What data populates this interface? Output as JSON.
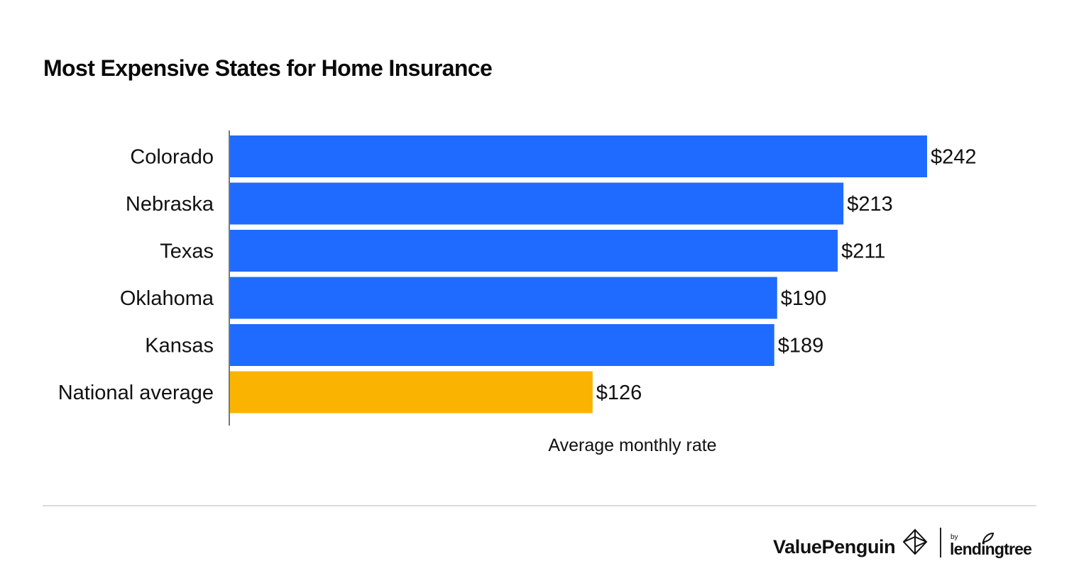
{
  "header": {
    "title": "Most Expensive States for Home Insurance"
  },
  "chart_data": {
    "type": "bar",
    "orientation": "horizontal",
    "title": "Most Expensive States for Home Insurance",
    "categories": [
      "Colorado",
      "Nebraska",
      "Texas",
      "Oklahoma",
      "Kansas",
      "National average"
    ],
    "values": [
      242,
      213,
      211,
      190,
      189,
      126
    ],
    "labels": [
      "$242",
      "$213",
      "$211",
      "$190",
      "$189",
      "$126"
    ],
    "highlight": [
      false,
      false,
      false,
      false,
      false,
      true
    ],
    "xlabel": "Average monthly rate",
    "ylabel": "",
    "xlim": [
      0,
      242
    ],
    "grid": false,
    "colors": {
      "primary": "#1f6bff",
      "highlight": "#fab400",
      "axis": "#777777"
    }
  },
  "footer": {
    "brand": "ValuePenguin",
    "brand_icon": "valuepenguin-logo-icon",
    "partner_prefix": "by",
    "partner": "lendingtree",
    "partner_icon": "lendingtree-leaf-icon"
  }
}
